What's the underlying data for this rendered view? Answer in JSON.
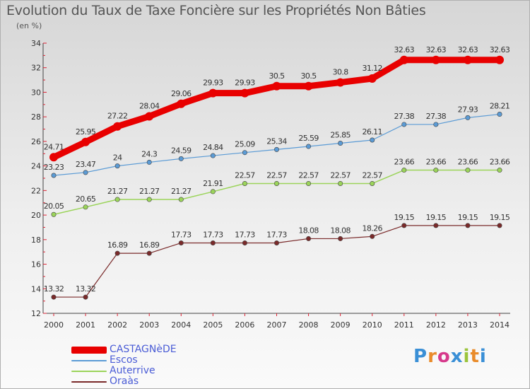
{
  "title": "Evolution du Taux de Taxe Foncière sur les Propriétés Non Bâties",
  "subtitle": "(en %)",
  "brand": {
    "letters": [
      "P",
      "r",
      "o",
      "x",
      "i",
      "t",
      "i"
    ],
    "colors": [
      "#3a8fd6",
      "#e98b2a",
      "#d6398b",
      "#3a8fd6",
      "#9ac43b",
      "#e98b2a",
      "#3a8fd6"
    ]
  },
  "chart_data": {
    "type": "line",
    "title": "Evolution du Taux de Taxe Foncière sur les Propriétés Non Bâties",
    "ylabel": "(en %)",
    "xlabel": "",
    "ylim": [
      12,
      34
    ],
    "yticks": [
      12,
      14,
      16,
      18,
      20,
      22,
      24,
      26,
      28,
      30,
      32,
      34
    ],
    "x": [
      "2000",
      "2001",
      "2002",
      "2003",
      "2004",
      "2005",
      "2006",
      "2007",
      "2008",
      "2009",
      "2010",
      "2011",
      "2012",
      "2013",
      "2014"
    ],
    "series": [
      {
        "name": "CASTAGNèDE",
        "color": "#e80000",
        "width": 9,
        "values": [
          24.71,
          25.95,
          27.22,
          28.04,
          29.06,
          29.93,
          29.93,
          30.5,
          30.5,
          30.8,
          31.12,
          32.63,
          32.63,
          32.63,
          32.63
        ],
        "labels": [
          "24.71",
          "25.95",
          "27.22",
          "28.04",
          "29.06",
          "29.93",
          "29.93",
          "30.5",
          "30.5",
          "30.8",
          "31.12",
          "32.63",
          "32.63",
          "32.63",
          "32.63"
        ]
      },
      {
        "name": "Escos",
        "color": "#5b9bd5",
        "width": 1.2,
        "values": [
          23.23,
          23.47,
          24,
          24.3,
          24.59,
          24.84,
          25.09,
          25.34,
          25.59,
          25.85,
          26.11,
          27.38,
          27.38,
          27.93,
          28.21
        ],
        "labels": [
          "23.23",
          "23.47",
          "24",
          "24.3",
          "24.59",
          "24.84",
          "25.09",
          "25.34",
          "25.59",
          "25.85",
          "26.11",
          "27.38",
          "27.38",
          "27.93",
          "28.21"
        ]
      },
      {
        "name": "Auterrive",
        "color": "#9bd45a",
        "width": 1.5,
        "values": [
          20.05,
          20.65,
          21.27,
          21.27,
          21.27,
          21.91,
          22.57,
          22.57,
          22.57,
          22.57,
          22.57,
          23.66,
          23.66,
          23.66,
          23.66
        ],
        "labels": [
          "20.05",
          "20.65",
          "21.27",
          "21.27",
          "21.27",
          "21.91",
          "22.57",
          "22.57",
          "22.57",
          "22.57",
          "22.57",
          "23.66",
          "23.66",
          "23.66",
          "23.66"
        ]
      },
      {
        "name": "Oraàs",
        "color": "#7a2a2a",
        "width": 1.2,
        "values": [
          13.32,
          13.32,
          16.89,
          16.89,
          17.73,
          17.73,
          17.73,
          17.73,
          18.08,
          18.08,
          18.26,
          19.15,
          19.15,
          19.15,
          19.15
        ],
        "labels": [
          "13.32",
          "13.32",
          "16.89",
          "16.89",
          "17.73",
          "17.73",
          "17.73",
          "17.73",
          "18.08",
          "18.08",
          "18.26",
          "19.15",
          "19.15",
          "19.15",
          "19.15"
        ]
      }
    ],
    "legend": "bottom-left",
    "grid": false
  }
}
